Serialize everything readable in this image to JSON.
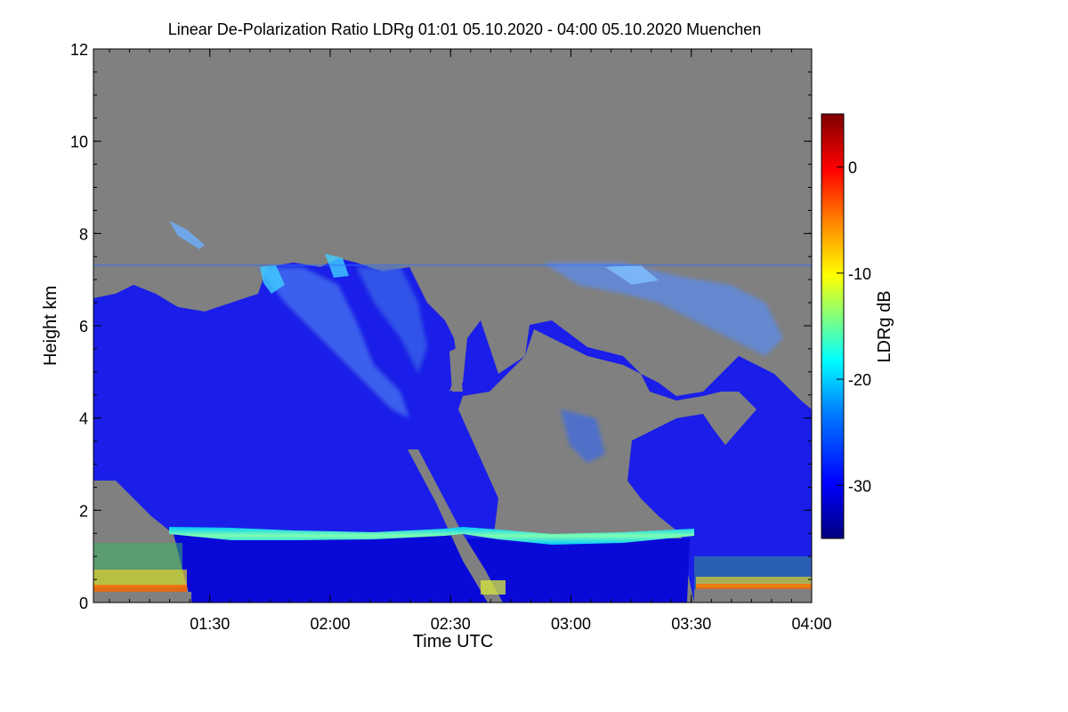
{
  "chart_data": {
    "type": "heatmap",
    "title": "Linear De-Polarization Ratio LDRg   01:01 05.10.2020 - 04:00 05.10.2020 Muenchen",
    "xlabel": "Time UTC",
    "ylabel": "Height km",
    "colorbar_label": "LDRg dB",
    "x_range": [
      "01:01",
      "04:00"
    ],
    "ylim": [
      0,
      12
    ],
    "x_ticks": [
      "01:30",
      "02:00",
      "02:30",
      "03:00",
      "03:30",
      "04:00"
    ],
    "y_ticks": [
      "0",
      "2",
      "4",
      "6",
      "8",
      "10",
      "12"
    ],
    "colorbar_range": [
      -35,
      5
    ],
    "colorbar_ticks": [
      "0",
      "-10",
      "-20",
      "-30"
    ],
    "colormap": [
      "#00007f",
      "#0000ff",
      "#0080ff",
      "#00ffff",
      "#80ff80",
      "#ffff00",
      "#ff8000",
      "#ff0000",
      "#7f0000"
    ],
    "no_signal_color": "#808080",
    "features": {
      "melting_layer_height_km": 1.5,
      "cloud_top_height_km": [
        6.5,
        7.5
      ],
      "near_surface_rain_end": "01:24",
      "near_surface_rain_restart": "03:31"
    }
  }
}
